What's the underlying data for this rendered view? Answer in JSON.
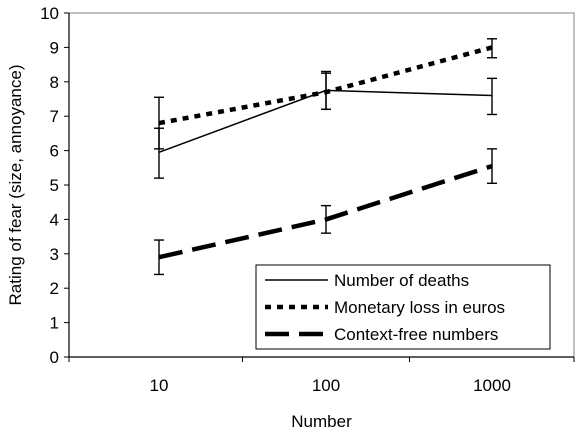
{
  "chart_data": {
    "type": "line",
    "categories": [
      "10",
      "100",
      "1000"
    ],
    "xlabel": "Number",
    "ylabel": "Rating of fear (size, annoyance)",
    "ylim": [
      0,
      10
    ],
    "yticks": [
      "0",
      "1",
      "2",
      "3",
      "4",
      "5",
      "6",
      "7",
      "8",
      "9",
      "10"
    ],
    "grid": false,
    "legend_position": "bottom-right",
    "series": [
      {
        "name": "Number of deaths",
        "style": "solid",
        "values": [
          5.95,
          7.75,
          7.6
        ],
        "error_low": [
          5.2,
          7.2,
          7.05
        ],
        "error_high": [
          6.65,
          8.3,
          8.1
        ]
      },
      {
        "name": "Monetary loss in euros",
        "style": "dotted",
        "values": [
          6.8,
          7.7,
          9.0
        ],
        "error_low": [
          6.05,
          7.2,
          8.7
        ],
        "error_high": [
          7.55,
          8.25,
          9.25
        ]
      },
      {
        "name": "Context-free numbers",
        "style": "dashed",
        "values": [
          2.9,
          4.0,
          5.55
        ],
        "error_low": [
          2.4,
          3.6,
          5.05
        ],
        "error_high": [
          3.4,
          4.4,
          6.05
        ]
      }
    ],
    "colors": {
      "line": "#000000",
      "background": "#ffffff"
    }
  }
}
